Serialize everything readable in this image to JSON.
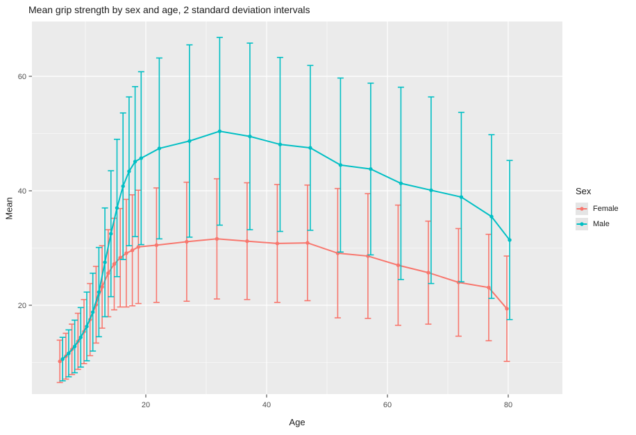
{
  "title": "Mean grip strength by sex and age, 2 standard deviation intervals",
  "legend": {
    "title": "Sex",
    "items": [
      {
        "label": "Female",
        "color": "#F8766D"
      },
      {
        "label": "Male",
        "color": "#00BFC4"
      }
    ]
  },
  "colors": {
    "female": "#F8766D",
    "male": "#00BFC4",
    "panel_bg": "#EBEBEB",
    "grid": "#FFFFFF",
    "tick_mark": "#333333",
    "tick_label": "#4D4D4D",
    "text": "#1A1A1A",
    "legend_key_bg": "#E5E5E5"
  },
  "chart_data": {
    "type": "line",
    "title": "Mean grip strength by sex and age, 2 standard deviation intervals",
    "xlabel": "Age",
    "ylabel": "Mean",
    "error_bars": "mean ± 2 standard deviations",
    "grid": true,
    "legend_position": "right",
    "xlim": [
      1.1,
      89.0
    ],
    "ylim": [
      4.5,
      69.6
    ],
    "x_ticks": [
      20,
      40,
      60,
      80
    ],
    "y_ticks": [
      20,
      40,
      60
    ],
    "x_minor_gridlines": [
      10,
      30,
      50,
      70
    ],
    "y_minor_gridlines": [
      10,
      30,
      50
    ],
    "ages": [
      6,
      7,
      8,
      9,
      10,
      11,
      12,
      13,
      14,
      15,
      16,
      17,
      18,
      19,
      22,
      27,
      32,
      37,
      42,
      47,
      52,
      57,
      62,
      67,
      72,
      77,
      80
    ],
    "series": [
      {
        "name": "Female",
        "color": "#F8766D",
        "mean": [
          10.2,
          11.1,
          12.3,
          13.7,
          15.4,
          17.5,
          20.1,
          23.2,
          25.6,
          27.2,
          28.3,
          29.1,
          29.6,
          30.2,
          30.5,
          31.1,
          31.6,
          31.2,
          30.8,
          30.9,
          29.1,
          28.6,
          27.0,
          25.7,
          24.0,
          23.1,
          19.4
        ],
        "lower": [
          6.5,
          7.1,
          7.9,
          8.8,
          9.8,
          11.2,
          13.4,
          16.0,
          18.0,
          19.2,
          19.7,
          19.7,
          19.9,
          20.3,
          20.5,
          20.7,
          21.1,
          21.0,
          20.5,
          20.8,
          17.8,
          17.7,
          16.5,
          16.7,
          14.6,
          13.8,
          10.2
        ],
        "upper": [
          13.9,
          15.1,
          16.7,
          18.6,
          21.0,
          23.8,
          26.8,
          30.4,
          33.2,
          35.2,
          36.9,
          38.5,
          39.3,
          40.1,
          40.5,
          41.5,
          42.1,
          41.4,
          41.1,
          41.0,
          40.4,
          39.5,
          37.5,
          34.7,
          33.4,
          32.4,
          28.6
        ]
      },
      {
        "name": "Male",
        "color": "#00BFC4",
        "mean": [
          10.6,
          11.6,
          12.8,
          14.4,
          16.3,
          18.8,
          22.3,
          27.5,
          32.5,
          37.0,
          40.8,
          43.4,
          45.1,
          45.7,
          47.4,
          48.7,
          50.4,
          49.5,
          48.1,
          47.5,
          44.5,
          43.8,
          41.3,
          40.1,
          38.9,
          35.5,
          31.4
        ],
        "lower": [
          6.8,
          7.5,
          8.2,
          9.2,
          10.3,
          12.0,
          14.5,
          18.0,
          21.5,
          25.0,
          28.0,
          30.4,
          32.0,
          30.6,
          31.6,
          31.9,
          34.0,
          33.2,
          32.9,
          33.1,
          29.3,
          28.8,
          24.5,
          23.8,
          24.1,
          21.2,
          17.5
        ],
        "upper": [
          14.4,
          15.7,
          17.4,
          19.6,
          22.3,
          25.6,
          30.1,
          37.0,
          43.5,
          49.0,
          53.6,
          56.4,
          58.2,
          60.8,
          63.2,
          65.5,
          66.8,
          65.8,
          63.3,
          61.9,
          59.7,
          58.8,
          58.1,
          56.4,
          53.7,
          49.8,
          45.3
        ]
      }
    ]
  }
}
